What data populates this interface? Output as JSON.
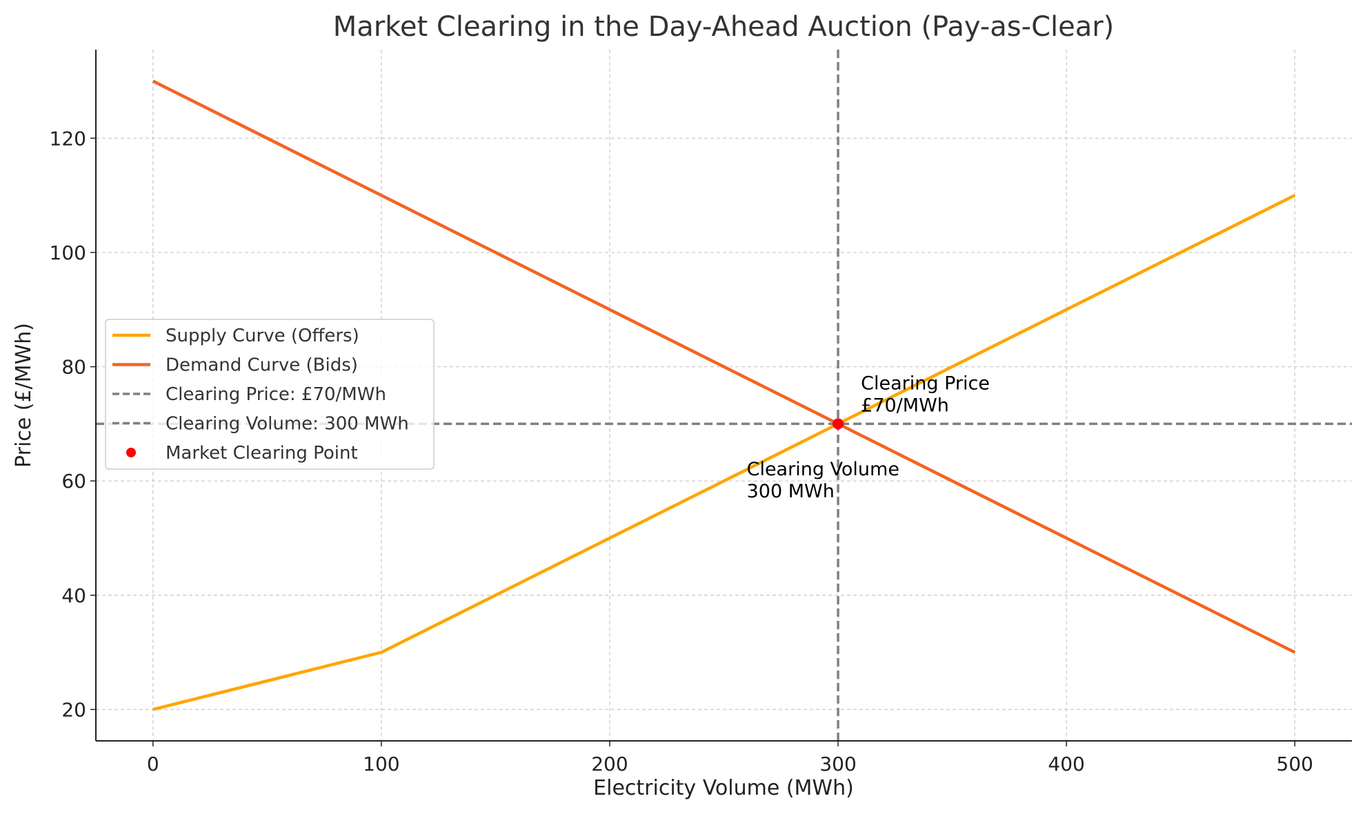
{
  "chart_data": {
    "type": "line",
    "title": "Market Clearing in the Day-Ahead Auction (Pay-as-Clear)",
    "xlabel": "Electricity Volume (MWh)",
    "ylabel": "Price (£/MWh)",
    "xlim": [
      -25,
      525
    ],
    "ylim": [
      14.5,
      135.5
    ],
    "xticks": [
      0,
      100,
      200,
      300,
      400,
      500
    ],
    "yticks": [
      20,
      40,
      60,
      80,
      100,
      120
    ],
    "grid": true,
    "legend_position": "center-left",
    "series": [
      {
        "name": "Supply Curve (Offers)",
        "color": "#FFA500",
        "x": [
          0,
          100,
          200,
          300,
          400,
          500
        ],
        "y": [
          20,
          30,
          50,
          70,
          90,
          110
        ]
      },
      {
        "name": "Demand Curve (Bids)",
        "color": "#F26522",
        "x": [
          0,
          100,
          200,
          300,
          400,
          500
        ],
        "y": [
          130,
          110,
          90,
          70,
          50,
          30
        ]
      }
    ],
    "hlines": [
      {
        "name": "Clearing Price: £70/MWh",
        "y": 70,
        "color": "#808080",
        "style": "dashed"
      }
    ],
    "vlines": [
      {
        "name": "Clearing Volume: 300 MWh",
        "x": 300,
        "color": "#808080",
        "style": "dashed"
      }
    ],
    "points": [
      {
        "name": "Market Clearing Point",
        "x": 300,
        "y": 70,
        "color": "#FF0000"
      }
    ],
    "annotations": [
      {
        "lines": [
          "Clearing Price",
          "£70/MWh"
        ],
        "x": 310,
        "y": 76
      },
      {
        "lines": [
          "Clearing Volume",
          "300 MWh"
        ],
        "x": 260,
        "y": 61
      }
    ]
  }
}
